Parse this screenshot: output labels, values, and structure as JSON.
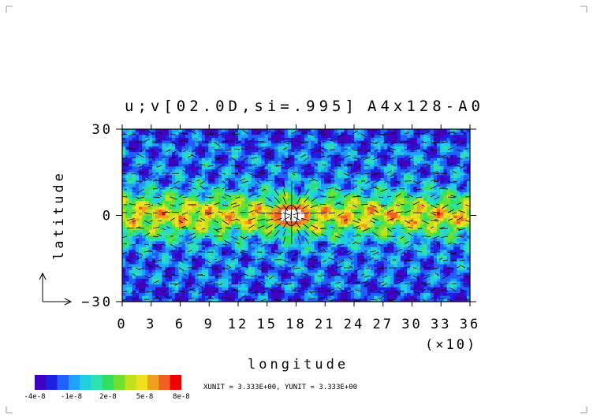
{
  "chart_data": {
    "type": "heatmap",
    "title": "u;v[02.0D,si=.995]",
    "subtitle": "A4x128-A0",
    "xlabel": "longitude",
    "ylabel": "latitude",
    "x_multiplier": "(×10)",
    "x_ticks": [
      0,
      3,
      6,
      9,
      12,
      15,
      18,
      21,
      24,
      27,
      30,
      33,
      36
    ],
    "y_ticks": [
      30,
      0,
      -30
    ],
    "y_tick_labels": [
      "30",
      "0",
      "−30"
    ],
    "xlim": [
      0,
      36
    ],
    "ylim": [
      -30,
      30
    ],
    "field": "filled contours of vorticity-like field with overlaid wind vectors",
    "colorbar": {
      "colors": [
        "#4000c0",
        "#2020e0",
        "#2060ff",
        "#20a0ff",
        "#20d0e0",
        "#30e0b0",
        "#30e060",
        "#70e030",
        "#c0e020",
        "#f0e020",
        "#f0a020",
        "#f06020",
        "#f00000"
      ],
      "tick_labels": [
        "-4e-8",
        "-1e-8",
        "2e-8",
        "5e-8",
        "8e-8"
      ]
    },
    "annotation": "XUNIT = 3.333E+00, YUNIT = 3.333E+00",
    "feature": {
      "lon": 17.5,
      "lat": 0,
      "description": "localized vortex"
    }
  }
}
